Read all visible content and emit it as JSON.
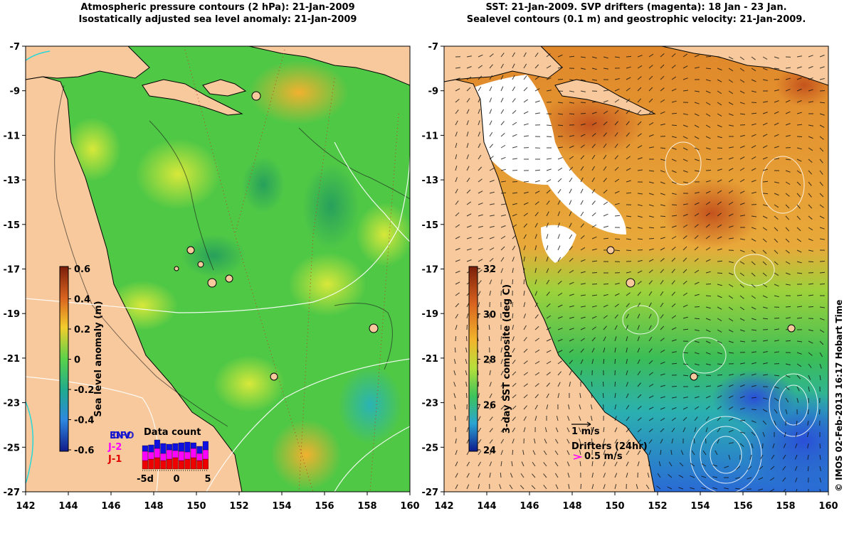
{
  "left_panel": {
    "title_line1": "Atmospheric pressure contours (2 hPa): 21-Jan-2009",
    "title_line2": "Isostatically adjusted sea level anomaly: 21-Jan-2009",
    "colorbar_label": "Sea level anomaly (m)",
    "colorbar_ticks": [
      "0.6",
      "0.4",
      "0.2",
      "0",
      "-0.2",
      "-0.4",
      "-0.6"
    ],
    "data_count": {
      "title": "Data count",
      "legend": [
        "ENV",
        "GFO",
        "J-2",
        "J-1"
      ],
      "x_ticks": [
        "-5d",
        "0",
        "5"
      ]
    }
  },
  "right_panel": {
    "title_line1": "SST: 21-Jan-2009. SVP drifters (magenta): 18 Jan - 23 Jan.",
    "title_line2": "Sealevel contours (0.1 m) and geostrophic velocity: 21-Jan-2009.",
    "colorbar_label": "3-day SST composite (deg C)",
    "colorbar_ticks": [
      "32",
      "30",
      "28",
      "26",
      "24"
    ],
    "velocity_scale": "1 m/s",
    "drifters_label": "Drifters (24hr)",
    "drifters_scale": "0.5 m/s"
  },
  "axes": {
    "x_ticks": [
      "142",
      "144",
      "146",
      "148",
      "150",
      "152",
      "154",
      "156",
      "158",
      "160"
    ],
    "y_ticks": [
      "-7",
      "-9",
      "-11",
      "-13",
      "-15",
      "-17",
      "-19",
      "-21",
      "-23",
      "-25",
      "-27"
    ],
    "lon_range": [
      142,
      160
    ],
    "lat_range": [
      -27,
      -7
    ]
  },
  "copyright": "© IMOS 02-Feb-2013 16:17 Hobart Time",
  "colors": {
    "land": "#f8c99c",
    "sla_green": "#5cd34a",
    "sst_orange": "#e5962e",
    "drifter": "#ff00ff"
  }
}
